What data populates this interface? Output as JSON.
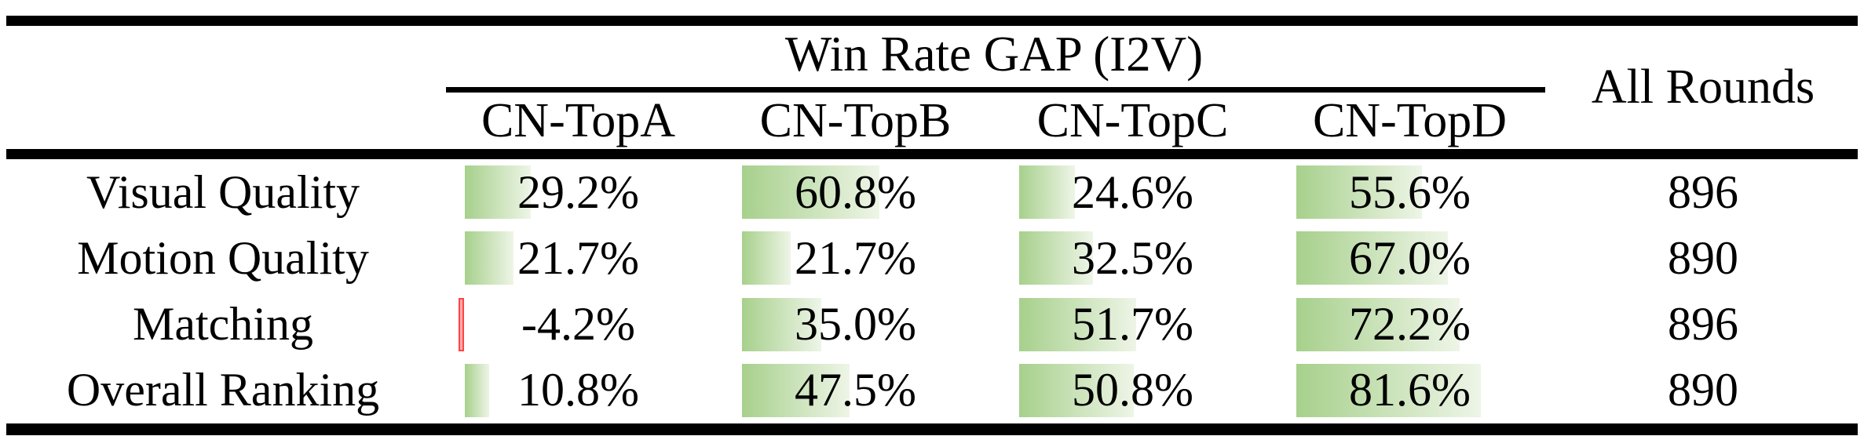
{
  "table": {
    "group_header": "Win Rate GAP (I2V)",
    "columns": [
      "CN-TopA",
      "CN-TopB",
      "CN-TopC",
      "CN-TopD"
    ],
    "all_rounds_header": "All Rounds",
    "rows": [
      {
        "label": "Visual Quality",
        "display": [
          "29.2%",
          "60.8%",
          "24.6%",
          "55.6%"
        ],
        "values": [
          29.2,
          60.8,
          24.6,
          55.6
        ],
        "all_rounds": "896"
      },
      {
        "label": "Motion Quality",
        "display": [
          "21.7%",
          "21.7%",
          "32.5%",
          "67.0%"
        ],
        "values": [
          21.7,
          21.7,
          32.5,
          67.0
        ],
        "all_rounds": "890"
      },
      {
        "label": "Matching",
        "display": [
          "-4.2%",
          "35.0%",
          "51.7%",
          "72.2%"
        ],
        "values": [
          -4.2,
          35.0,
          51.7,
          72.2
        ],
        "all_rounds": "896"
      },
      {
        "label": "Overall Ranking",
        "display": [
          "10.8%",
          "47.5%",
          "50.8%",
          "81.6%"
        ],
        "values": [
          10.8,
          47.5,
          50.8,
          81.6
        ],
        "all_rounds": "890"
      }
    ],
    "colors": {
      "bar_green_start": "#a7d08c",
      "bar_green_end": "#eef5e7",
      "bar_negative_fill": "#ffabab",
      "bar_negative_border": "#ff4545",
      "rule": "#000000"
    }
  },
  "chart_data": {
    "type": "table",
    "title": "Win Rate GAP (I2V)",
    "categories": [
      "Visual Quality",
      "Motion Quality",
      "Matching",
      "Overall Ranking"
    ],
    "series": [
      {
        "name": "CN-TopA",
        "values": [
          29.2,
          21.7,
          -4.2,
          10.8
        ]
      },
      {
        "name": "CN-TopB",
        "values": [
          60.8,
          21.7,
          35.0,
          47.5
        ]
      },
      {
        "name": "CN-TopC",
        "values": [
          24.6,
          32.5,
          51.7,
          50.8
        ]
      },
      {
        "name": "CN-TopD",
        "values": [
          55.6,
          67.0,
          72.2,
          81.6
        ]
      },
      {
        "name": "All Rounds",
        "values": [
          896,
          890,
          896,
          890
        ]
      }
    ],
    "value_unit": "%",
    "bar_style": "in-cell green gradient data bars, negative values as thin red bar"
  }
}
